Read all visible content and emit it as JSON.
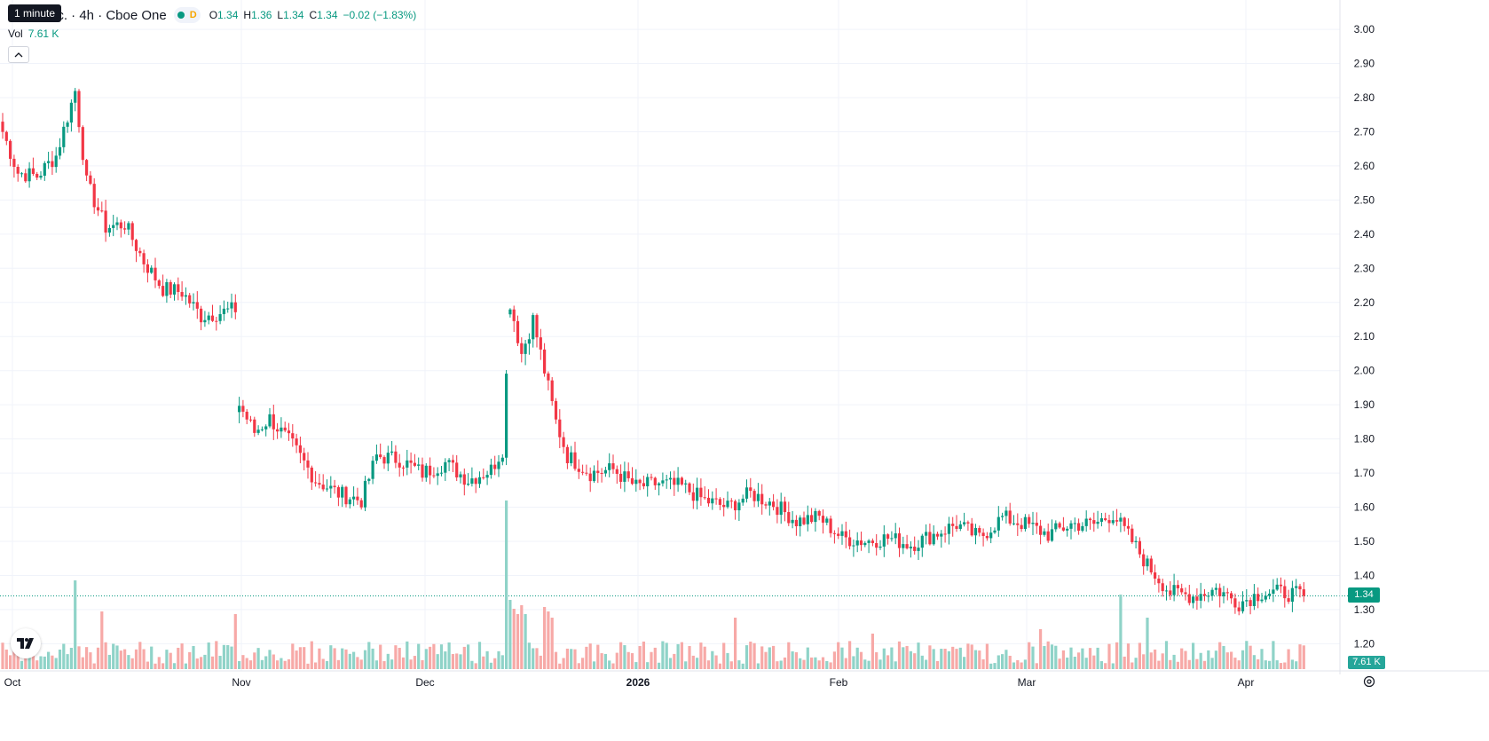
{
  "header": {
    "tooltip": "1 minute",
    "symbol_title": "nc. · 4h · Cboe One",
    "status_badge": "D",
    "ohlc": {
      "o_label": "O",
      "o": "1.34",
      "h_label": "H",
      "h": "1.36",
      "l_label": "L",
      "l": "1.34",
      "c_label": "C",
      "c": "1.34",
      "change": "−0.02 (−1.83%)"
    },
    "volume_label": "Vol",
    "volume_value": "7.61 K"
  },
  "colors": {
    "up": "#089981",
    "down": "#f23645",
    "up_vol": "#8fd3c8",
    "down_vol": "#f7a9a7",
    "grid": "#f0f3fa"
  },
  "icons": {
    "collapse": "chevron-up-icon",
    "logo": "tradingview-logo",
    "settings": "gear-icon"
  },
  "last_price_badge": "1.34",
  "last_volume_badge": "7.61 K",
  "chart_data": {
    "type": "candlestick",
    "timeframe": "4h",
    "y_ticks": [
      "3.00",
      "2.90",
      "2.80",
      "2.70",
      "2.60",
      "2.50",
      "2.40",
      "2.30",
      "2.20",
      "2.10",
      "2.00",
      "1.90",
      "1.80",
      "1.70",
      "1.60",
      "1.50",
      "1.40",
      "1.30",
      "1.20"
    ],
    "ylim": [
      1.11,
      3.06
    ],
    "x_ticks": [
      {
        "label": "Oct",
        "bold": false
      },
      {
        "label": "Nov",
        "bold": false
      },
      {
        "label": "Dec",
        "bold": false
      },
      {
        "label": "2026",
        "bold": true
      },
      {
        "label": "Feb",
        "bold": false
      },
      {
        "label": "Mar",
        "bold": false
      },
      {
        "label": "Apr",
        "bold": false
      }
    ],
    "last_price": 1.34,
    "anchors": [
      {
        "i": 0,
        "p": 2.7
      },
      {
        "i": 4,
        "p": 2.58
      },
      {
        "i": 9,
        "p": 2.57
      },
      {
        "i": 14,
        "p": 2.63
      },
      {
        "i": 19,
        "p": 2.82
      },
      {
        "i": 22,
        "p": 2.55
      },
      {
        "i": 27,
        "p": 2.42
      },
      {
        "i": 32,
        "p": 2.43
      },
      {
        "i": 37,
        "p": 2.32
      },
      {
        "i": 42,
        "p": 2.24
      },
      {
        "i": 47,
        "p": 2.23
      },
      {
        "i": 52,
        "p": 2.16
      },
      {
        "i": 57,
        "p": 2.17
      },
      {
        "i": 61,
        "p": 2.18
      },
      {
        "i": 62,
        "p": 1.9
      },
      {
        "i": 66,
        "p": 1.82
      },
      {
        "i": 70,
        "p": 1.86
      },
      {
        "i": 76,
        "p": 1.78
      },
      {
        "i": 82,
        "p": 1.68
      },
      {
        "i": 88,
        "p": 1.64
      },
      {
        "i": 94,
        "p": 1.62
      },
      {
        "i": 98,
        "p": 1.75
      },
      {
        "i": 104,
        "p": 1.74
      },
      {
        "i": 110,
        "p": 1.7
      },
      {
        "i": 116,
        "p": 1.73
      },
      {
        "i": 122,
        "p": 1.68
      },
      {
        "i": 128,
        "p": 1.71
      },
      {
        "i": 131,
        "p": 1.77
      },
      {
        "i": 133,
        "p": 2.2
      },
      {
        "i": 136,
        "p": 2.05
      },
      {
        "i": 139,
        "p": 2.15
      },
      {
        "i": 142,
        "p": 2.0
      },
      {
        "i": 145,
        "p": 1.85
      },
      {
        "i": 148,
        "p": 1.75
      },
      {
        "i": 154,
        "p": 1.7
      },
      {
        "i": 160,
        "p": 1.71
      },
      {
        "i": 166,
        "p": 1.66
      },
      {
        "i": 172,
        "p": 1.67
      },
      {
        "i": 178,
        "p": 1.66
      },
      {
        "i": 184,
        "p": 1.62
      },
      {
        "i": 190,
        "p": 1.6
      },
      {
        "i": 196,
        "p": 1.64
      },
      {
        "i": 202,
        "p": 1.61
      },
      {
        "i": 208,
        "p": 1.56
      },
      {
        "i": 214,
        "p": 1.57
      },
      {
        "i": 220,
        "p": 1.51
      },
      {
        "i": 226,
        "p": 1.5
      },
      {
        "i": 232,
        "p": 1.51
      },
      {
        "i": 238,
        "p": 1.49
      },
      {
        "i": 244,
        "p": 1.52
      },
      {
        "i": 250,
        "p": 1.55
      },
      {
        "i": 256,
        "p": 1.51
      },
      {
        "i": 262,
        "p": 1.57
      },
      {
        "i": 268,
        "p": 1.55
      },
      {
        "i": 274,
        "p": 1.52
      },
      {
        "i": 280,
        "p": 1.55
      },
      {
        "i": 286,
        "p": 1.55
      },
      {
        "i": 291,
        "p": 1.58
      },
      {
        "i": 296,
        "p": 1.5
      },
      {
        "i": 300,
        "p": 1.43
      },
      {
        "i": 306,
        "p": 1.35
      },
      {
        "i": 312,
        "p": 1.34
      },
      {
        "i": 318,
        "p": 1.36
      },
      {
        "i": 324,
        "p": 1.32
      },
      {
        "i": 330,
        "p": 1.35
      },
      {
        "i": 336,
        "p": 1.35
      },
      {
        "i": 341,
        "p": 1.34
      }
    ]
  }
}
